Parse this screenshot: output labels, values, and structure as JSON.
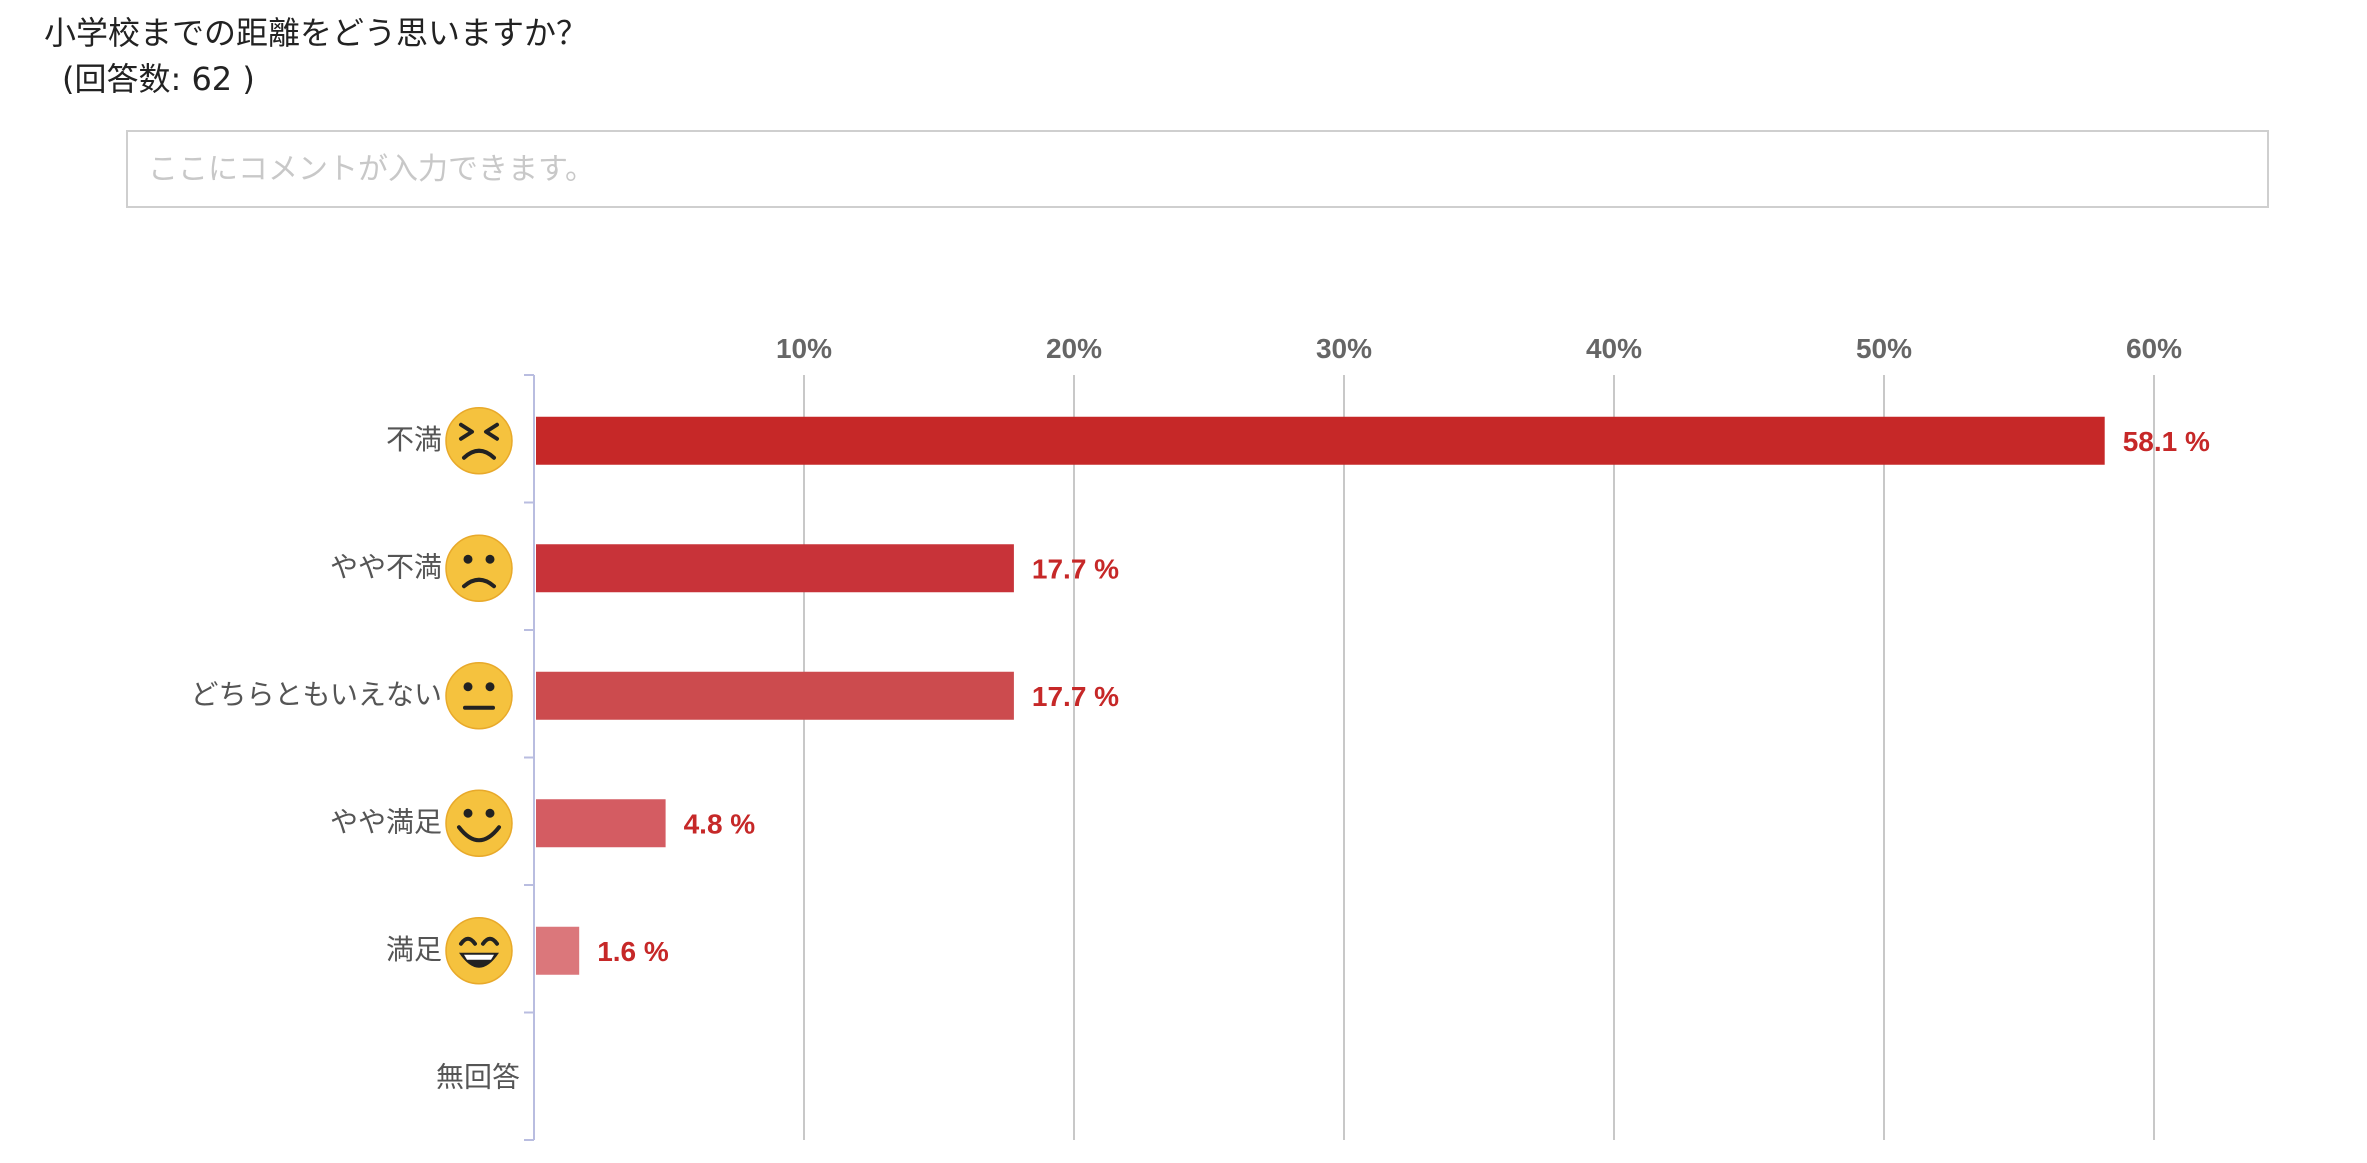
{
  "question": {
    "title": "小学校までの距離をどう思いますか？",
    "response_count": "(回答数: 62 )"
  },
  "comment": {
    "placeholder": "ここにコメントが入力できます。"
  },
  "colors": {
    "bars": [
      "#c62828",
      "#c83339",
      "#cc4b4e",
      "#d45c62",
      "#db777b"
    ],
    "value_text": "#c62828",
    "gridline": "#c8c8c8",
    "face_fill": "#f5c23e"
  },
  "chart_data": {
    "type": "bar",
    "orientation": "horizontal",
    "categories": [
      "不満",
      "やや不満",
      "どちらともいえない",
      "やや満足",
      "満足",
      "無回答"
    ],
    "category_icons": [
      "grimace-face-icon",
      "frown-face-icon",
      "neutral-face-icon",
      "smile-face-icon",
      "big-grin-face-icon",
      null
    ],
    "values": [
      58.1,
      17.7,
      17.7,
      4.8,
      1.6,
      null
    ],
    "value_labels": [
      "58.1 %",
      "17.7 %",
      "17.7 %",
      "4.8 %",
      "1.6 %",
      ""
    ],
    "ticks": [
      10,
      20,
      30,
      40,
      50,
      60
    ],
    "tick_labels": [
      "10%",
      "20%",
      "30%",
      "40%",
      "50%",
      "60%"
    ],
    "xlim": [
      0,
      65
    ],
    "axis_position": "top",
    "grid": true,
    "title": "",
    "xlabel": "",
    "ylabel": ""
  }
}
